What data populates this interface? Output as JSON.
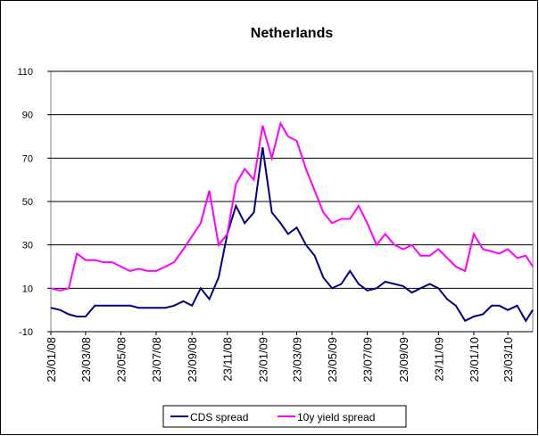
{
  "chart_data": {
    "type": "line",
    "title": "Netherlands",
    "x": [
      "23/01/08",
      "08/02/08",
      "23/02/08",
      "08/03/08",
      "23/03/08",
      "08/04/08",
      "23/04/08",
      "08/05/08",
      "23/05/08",
      "08/06/08",
      "23/06/08",
      "08/07/08",
      "23/07/08",
      "08/08/08",
      "23/08/08",
      "08/09/08",
      "23/09/08",
      "08/10/08",
      "23/10/08",
      "08/11/08",
      "23/11/08",
      "08/12/08",
      "23/12/08",
      "08/01/09",
      "23/01/09",
      "08/02/09",
      "23/02/09",
      "08/03/09",
      "23/03/09",
      "08/04/09",
      "23/04/09",
      "08/05/09",
      "23/05/09",
      "08/06/09",
      "23/06/09",
      "08/07/09",
      "23/07/09",
      "08/08/09",
      "23/08/09",
      "08/09/09",
      "23/09/09",
      "08/10/09",
      "23/10/09",
      "08/11/09",
      "23/11/09",
      "08/12/09",
      "23/12/09",
      "08/01/10",
      "23/01/10",
      "08/02/10",
      "23/02/10",
      "08/03/10",
      "23/03/10",
      "08/04/10",
      "23/04/10",
      "05/05/10"
    ],
    "series": [
      {
        "name": "CDS spread",
        "color": "#000080",
        "values": [
          1,
          0,
          -2,
          -3,
          -3,
          2,
          2,
          2,
          2,
          2,
          1,
          1,
          1,
          1,
          2,
          4,
          2,
          10,
          5,
          15,
          35,
          48,
          40,
          45,
          75,
          45,
          40,
          35,
          38,
          30,
          25,
          15,
          10,
          12,
          18,
          12,
          9,
          10,
          13,
          12,
          11,
          8,
          10,
          12,
          10,
          5,
          2,
          -5,
          -3,
          -2,
          2,
          2,
          0,
          2,
          -5,
          0
        ]
      },
      {
        "name": "10y yield spread",
        "color": "#ff00ff",
        "values": [
          10,
          9,
          10,
          26,
          23,
          23,
          22,
          22,
          20,
          18,
          19,
          18,
          18,
          20,
          22,
          28,
          34,
          40,
          55,
          30,
          35,
          58,
          65,
          60,
          85,
          70,
          86,
          80,
          78,
          65,
          55,
          45,
          40,
          42,
          42,
          48,
          40,
          30,
          35,
          30,
          28,
          30,
          25,
          25,
          28,
          24,
          20,
          18,
          35,
          28,
          27,
          26,
          28,
          24,
          25,
          20
        ]
      }
    ],
    "xlim": [
      "23/01/08",
      "05/05/10"
    ],
    "xticks": [
      "23/01/08",
      "23/03/08",
      "23/05/08",
      "23/07/08",
      "23/09/08",
      "23/11/08",
      "23/01/09",
      "23/03/09",
      "23/05/09",
      "23/07/09",
      "23/09/09",
      "23/11/09",
      "23/01/10",
      "23/03/10"
    ],
    "ylim": [
      -10,
      110
    ],
    "yticks": [
      -10,
      10,
      30,
      50,
      70,
      90,
      110
    ],
    "grid": true,
    "legend": "bottom"
  }
}
